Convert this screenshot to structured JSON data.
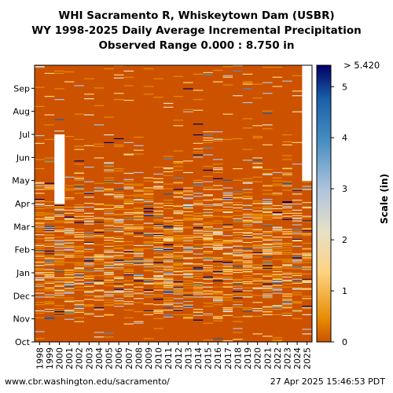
{
  "title_line1": "WHI Sacramento R, Whiskeytown Dam (USBR)",
  "title_line2": "WY 1998-2025 Daily Average Incremental Precipitation",
  "title_line3": "Observed Range 0.000 : 8.750 in",
  "footer_left": "www.cbr.washington.edu/sacramento/",
  "footer_right": "27 Apr 2025 15:46:53 PDT",
  "chart_data": {
    "type": "heatmap",
    "title": "WHI Sacramento R, Whiskeytown Dam (USBR) — WY 1998-2025 Daily Average Incremental Precipitation",
    "subtitle": "Observed Range 0.000 : 8.750 in",
    "x": [
      "1998",
      "1999",
      "2000",
      "2001",
      "2002",
      "2003",
      "2004",
      "2005",
      "2006",
      "2007",
      "2008",
      "2009",
      "2010",
      "2011",
      "2012",
      "2013",
      "2014",
      "2015",
      "2016",
      "2017",
      "2018",
      "2019",
      "2020",
      "2021",
      "2022",
      "2023",
      "2024",
      "2025"
    ],
    "y": [
      "Oct",
      "Nov",
      "Dec",
      "Jan",
      "Feb",
      "Mar",
      "Apr",
      "May",
      "Jun",
      "Jul",
      "Aug",
      "Sep"
    ],
    "colorbar": {
      "label": "Scale (in)",
      "min": 0,
      "max": 5.42,
      "max_label": "> 5.420",
      "ticks": [
        "0",
        "1",
        "2",
        "3",
        "4",
        "5"
      ],
      "colors": [
        "#cc5200",
        "#e68a00",
        "#ffd27f",
        "#e6e0c8",
        "#b0c4de",
        "#4a90c4",
        "#1a5fa8",
        "#000066"
      ]
    },
    "missing_color": "#ffffff",
    "base_color": "#cc5200",
    "missing_periods": [
      {
        "year": "2025",
        "from_month": "May",
        "to_month": "Sep"
      },
      {
        "year": "2000",
        "from_month": "Apr",
        "to_month": "Jun"
      }
    ],
    "value_range": [
      0.0,
      8.75
    ],
    "grid": false
  }
}
